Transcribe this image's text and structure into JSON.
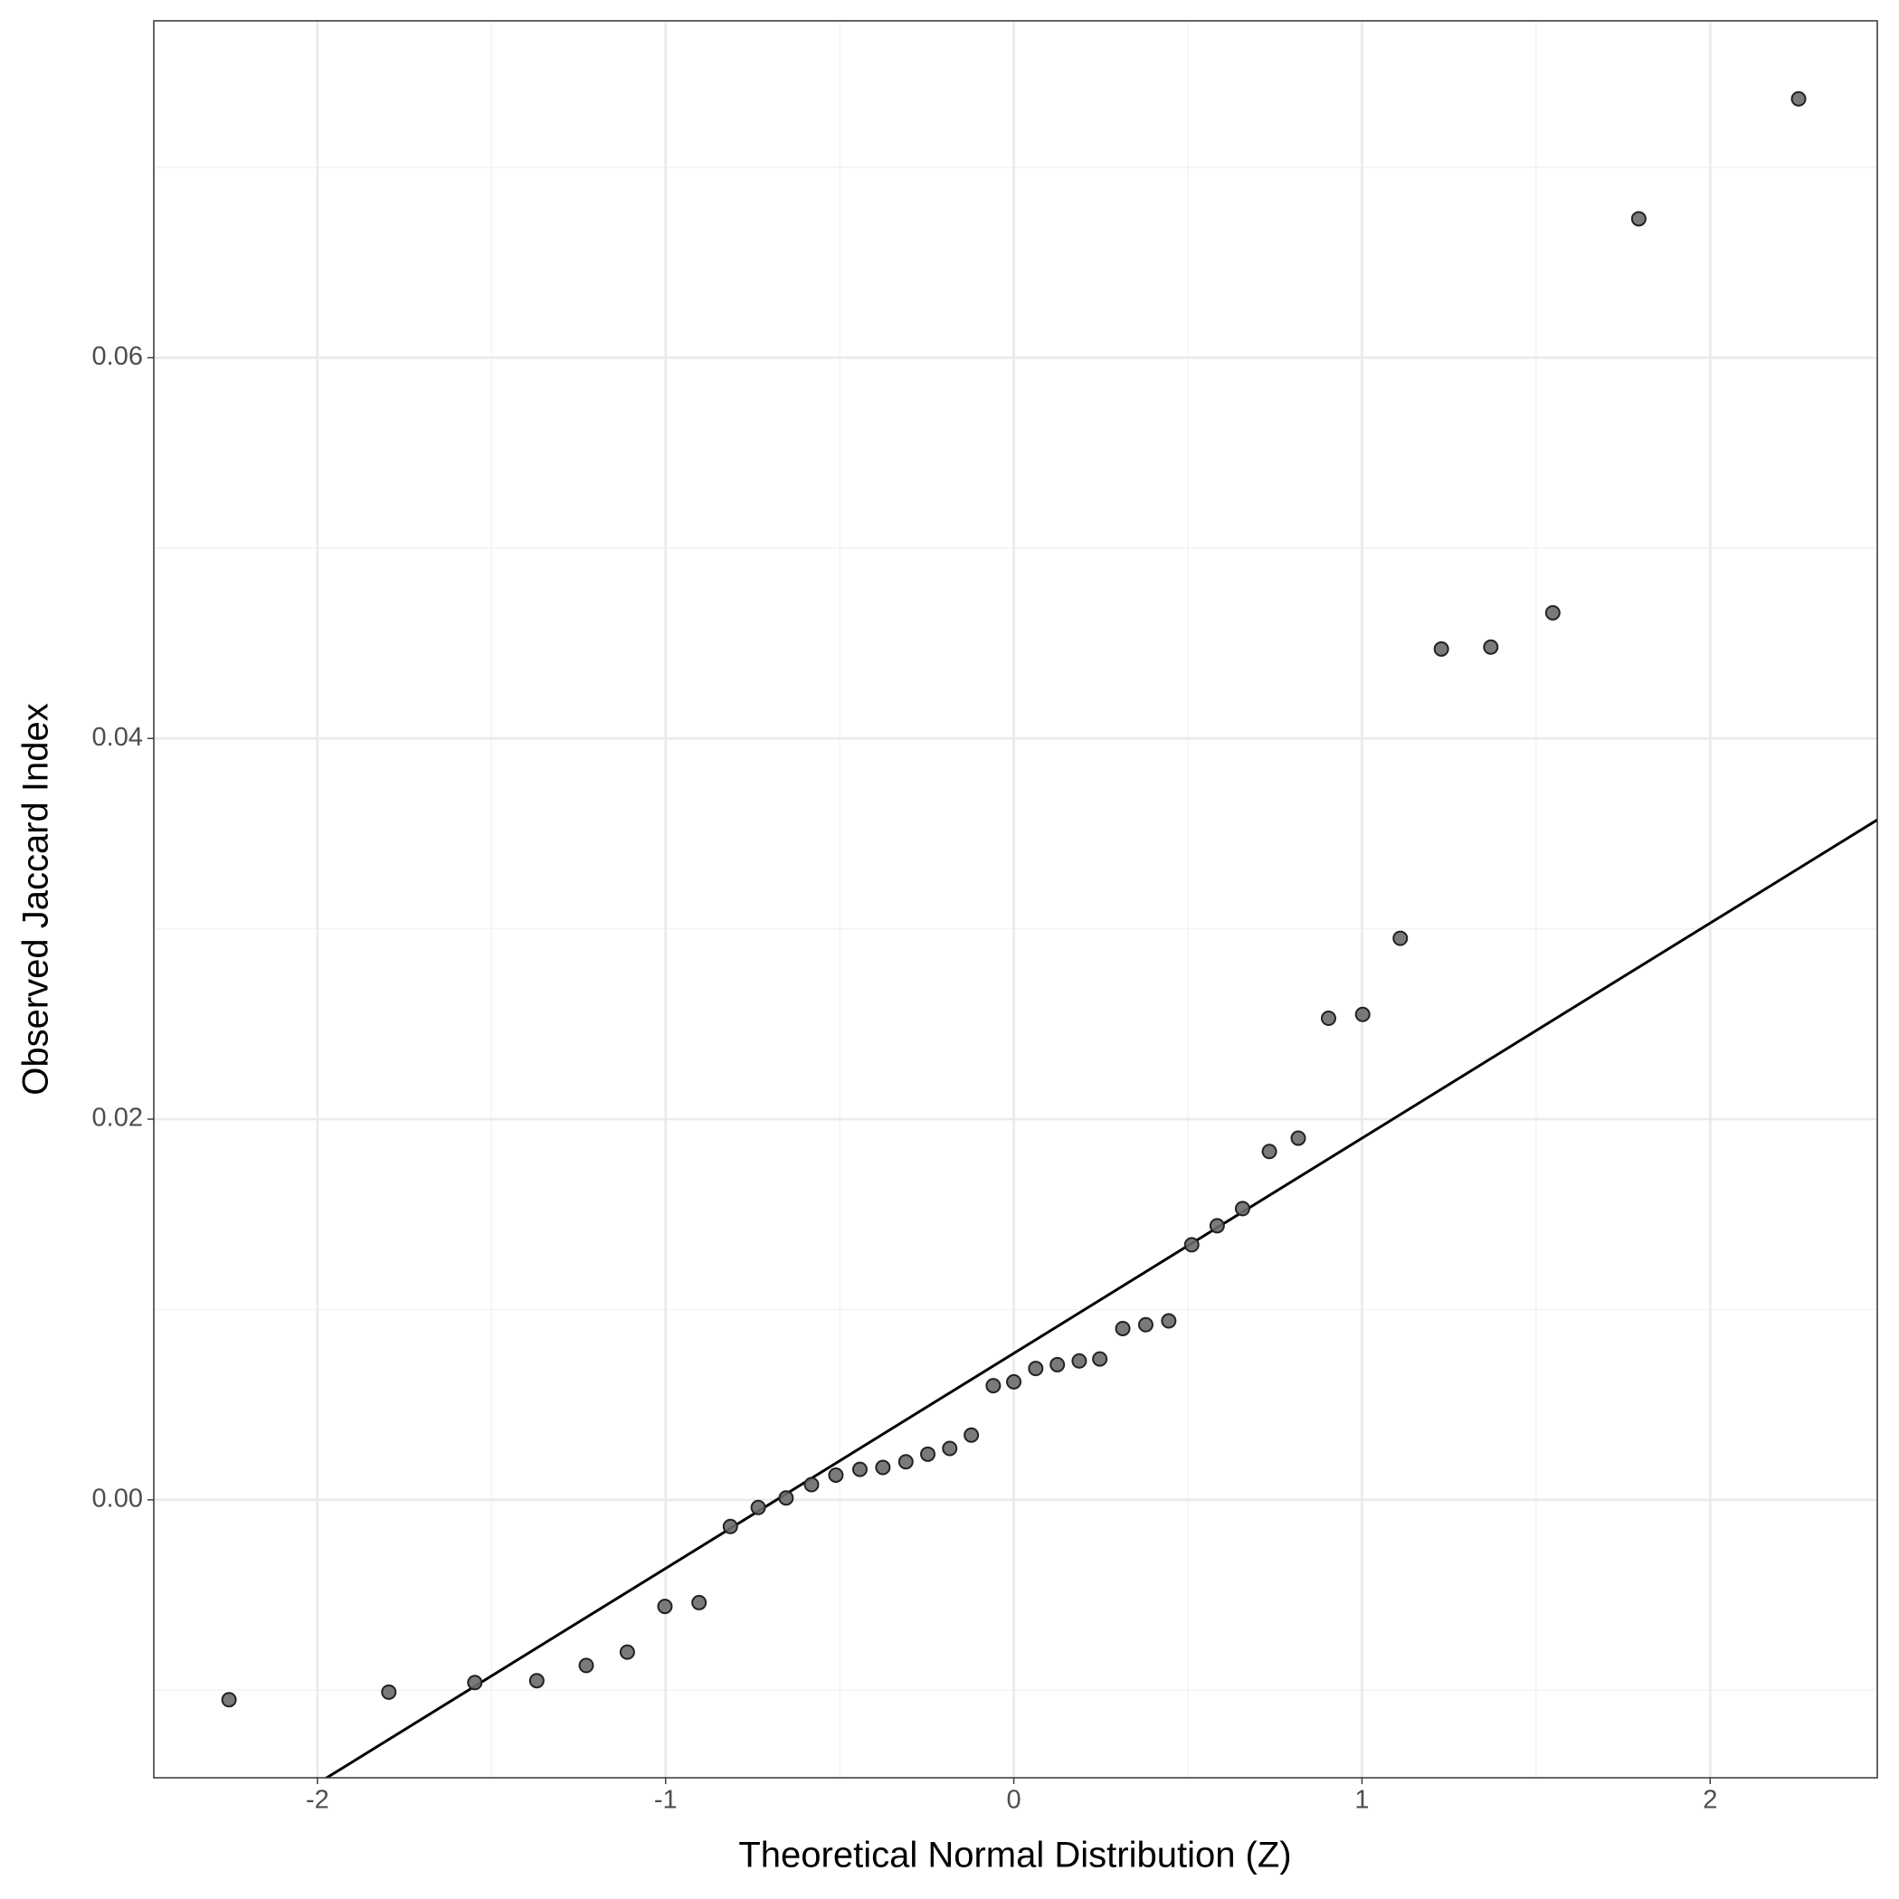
{
  "chart_data": {
    "type": "scatter",
    "x_label": "Theoretical Normal Distribution (Z)",
    "y_label": "Observed Jaccard Index",
    "x": [
      -2.254,
      -1.795,
      -1.548,
      -1.37,
      -1.228,
      -1.11,
      -1.002,
      -0.904,
      -0.814,
      -0.734,
      -0.654,
      -0.581,
      -0.511,
      -0.442,
      -0.376,
      -0.31,
      -0.247,
      -0.184,
      -0.122,
      -0.059,
      0,
      0.063,
      0.125,
      0.188,
      0.247,
      0.313,
      0.379,
      0.445,
      0.511,
      0.584,
      0.657,
      0.734,
      0.817,
      0.904,
      1.002,
      1.11,
      1.228,
      1.37,
      1.548,
      1.795,
      2.254
    ],
    "values": [
      -0.0105,
      -0.0101,
      -0.0096,
      -0.0095,
      -0.0087,
      -0.008,
      -0.0056,
      -0.0054,
      -0.0014,
      -0.0004,
      0.0001,
      0.0008,
      0.0013,
      0.0016,
      0.0017,
      0.002,
      0.0024,
      0.0027,
      0.0034,
      0.006,
      0.0062,
      0.0069,
      0.0071,
      0.0073,
      0.0074,
      0.009,
      0.0092,
      0.0094,
      0.0134,
      0.0144,
      0.0153,
      0.0183,
      0.019,
      0.0253,
      0.0255,
      0.0295,
      0.0447,
      0.0448,
      0.0466,
      0.0673,
      0.0736
    ],
    "color": "#6b6b6b",
    "reference_line": {
      "intercept": 0.0077,
      "slope": 0.0113,
      "color": "#000000"
    },
    "xlim": [
      -2.47,
      2.48
    ],
    "ylim": [
      -0.0146,
      0.0777
    ],
    "xticks": [
      -2,
      -1,
      0,
      1,
      2
    ],
    "yticks": [
      {
        "value": 0,
        "label": "0.00"
      },
      {
        "value": 0.02,
        "label": "0.02"
      },
      {
        "value": 0.04,
        "label": "0.04"
      },
      {
        "value": 0.06,
        "label": "0.06"
      }
    ],
    "grid": true
  }
}
